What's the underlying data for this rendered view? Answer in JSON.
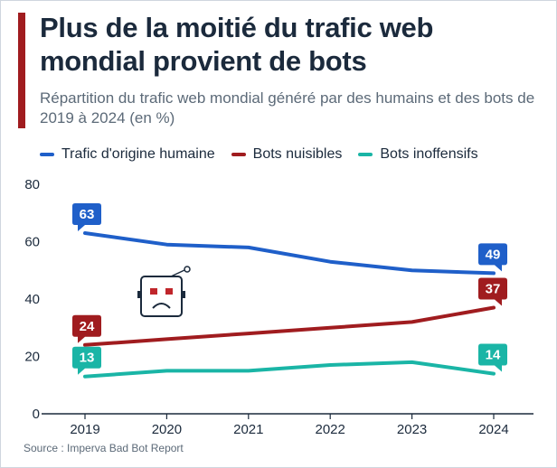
{
  "title": "Plus de la moitié du trafic web mondial provient de bots",
  "subtitle": "Répartition du trafic web mondial généré par des humains et des bots de 2019 à 2024 (en %)",
  "source": "Source : Imperva Bad Bot Report",
  "decoration": {
    "icon": "sad-robot-icon"
  },
  "chart_data": {
    "type": "line",
    "title": "Plus de la moitié du trafic web mondial provient de bots",
    "subtitle": "Répartition du trafic web mondial généré par des humains et des bots de 2019 à 2024 (en %)",
    "xlabel": "",
    "ylabel": "",
    "x": [
      "2019",
      "2020",
      "2021",
      "2022",
      "2023",
      "2024"
    ],
    "ylim": [
      0,
      80
    ],
    "yticks": [
      "0",
      "20",
      "40",
      "60",
      "80"
    ],
    "grid": false,
    "legend_position": "top",
    "series": [
      {
        "name": "Trafic d'origine humaine",
        "color": "#1f5fc9",
        "values": [
          63,
          59,
          58,
          53,
          50,
          49
        ],
        "labels": {
          "first": "63",
          "last": "49"
        }
      },
      {
        "name": "Bots nuisibles",
        "color": "#a01c1f",
        "values": [
          24,
          26,
          28,
          30,
          32,
          37
        ],
        "labels": {
          "first": "24",
          "last": "37"
        }
      },
      {
        "name": "Bots inoffensifs",
        "color": "#1ab5a6",
        "values": [
          13,
          15,
          15,
          17,
          18,
          14
        ],
        "labels": {
          "first": "13",
          "last": "14"
        }
      }
    ]
  }
}
